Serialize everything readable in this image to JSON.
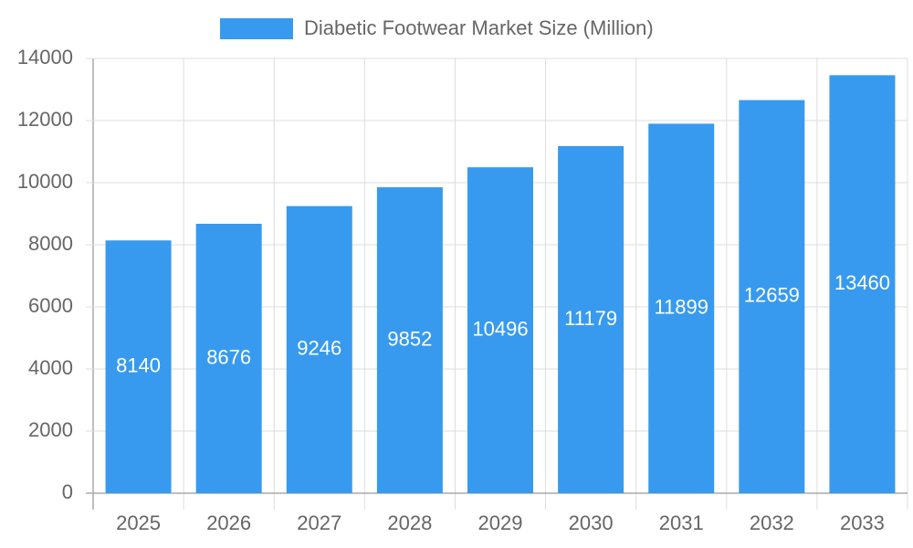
{
  "chart_data": {
    "type": "bar",
    "categories": [
      "2025",
      "2026",
      "2027",
      "2028",
      "2029",
      "2030",
      "2031",
      "2032",
      "2033"
    ],
    "series": [
      {
        "name": "Diabetic Footwear Market Size (Million)",
        "color": "#379aef",
        "values": [
          8140,
          8676,
          9246,
          9852,
          10496,
          11179,
          11899,
          12659,
          13460
        ]
      }
    ],
    "ylim": [
      0,
      14000
    ],
    "yticks": [
      0,
      2000,
      4000,
      6000,
      8000,
      10000,
      12000,
      14000
    ],
    "grid": true,
    "legend": "top"
  }
}
